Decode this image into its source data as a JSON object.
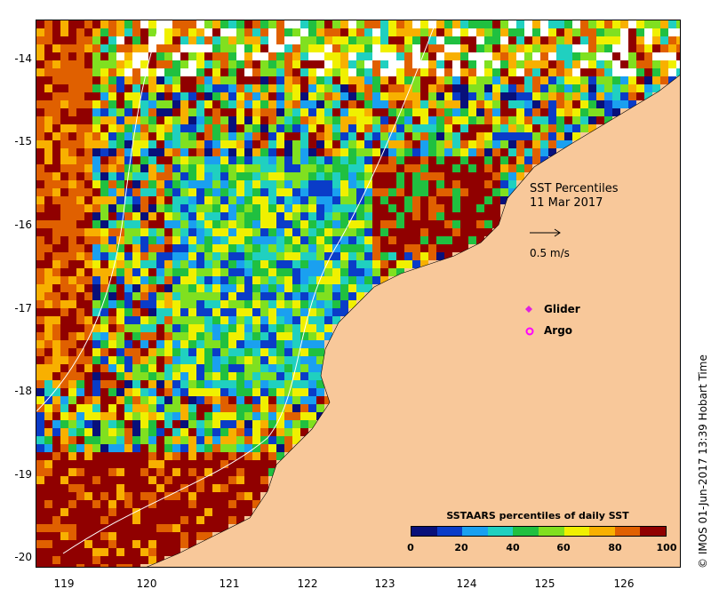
{
  "map": {
    "title_line1": "SST Percentiles",
    "title_line2": "11 Mar 2017",
    "vector_scale_label": "0.5 m/s",
    "legend": [
      {
        "label": "Glider",
        "color": "#e020e0",
        "symbol": "diamond"
      },
      {
        "label": "Argo",
        "color": "#ff00ff",
        "symbol": "circle"
      }
    ],
    "credit": "© IMOS 01-Jun-2017 13:39 Hobart Time",
    "x_ticks": [
      "119",
      "120",
      "121",
      "122",
      "123",
      "124",
      "125",
      "126"
    ],
    "y_ticks": [
      "-14",
      "-15",
      "-16",
      "-17",
      "-18",
      "-19",
      "-20"
    ],
    "land_color": "#f8c89a",
    "colorbar": {
      "title": "SSTAARS percentiles of daily SST",
      "ticks": [
        "0",
        "20",
        "40",
        "60",
        "80",
        "100"
      ],
      "colors": [
        "#08107a",
        "#0a3cc8",
        "#1aa0f0",
        "#20d0c0",
        "#20c040",
        "#80e020",
        "#f0f000",
        "#f8b000",
        "#e06000",
        "#900000"
      ]
    }
  }
}
